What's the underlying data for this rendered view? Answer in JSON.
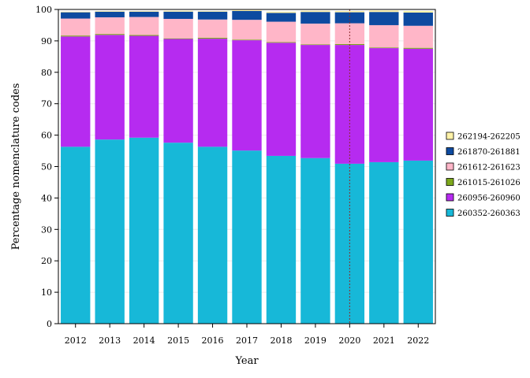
{
  "chart_data": {
    "type": "bar",
    "stacked": true,
    "xlabel": "Year",
    "ylabel": "Percentage nomenclature codes",
    "ylim": [
      0,
      100
    ],
    "yticks": [
      0,
      10,
      20,
      30,
      40,
      50,
      60,
      70,
      80,
      90,
      100
    ],
    "categories": [
      "2012",
      "2013",
      "2014",
      "2015",
      "2016",
      "2017",
      "2018",
      "2019",
      "2020",
      "2021",
      "2022"
    ],
    "reference_line_category": "2020",
    "legend_position": "right",
    "series": [
      {
        "name": "260352-260363",
        "color": "#17b8d8",
        "values": [
          56.3,
          58.6,
          59.2,
          57.6,
          56.3,
          55.1,
          53.4,
          52.7,
          50.9,
          51.4,
          51.9
        ]
      },
      {
        "name": "260956-260960",
        "color": "#b62bf0",
        "values": [
          35.1,
          33.3,
          32.4,
          33.0,
          34.4,
          35.1,
          36.0,
          36.0,
          37.8,
          36.3,
          35.6
        ]
      },
      {
        "name": "261015-261026",
        "color": "#7da81c",
        "values": [
          0.3,
          0.3,
          0.3,
          0.2,
          0.3,
          0.2,
          0.2,
          0.2,
          0.3,
          0.2,
          0.3
        ]
      },
      {
        "name": "261612-261623",
        "color": "#ffb6c8",
        "values": [
          5.4,
          5.3,
          5.7,
          6.2,
          5.8,
          6.3,
          6.5,
          6.6,
          6.6,
          7.1,
          7.0
        ]
      },
      {
        "name": "261870-261881",
        "color": "#0d4aa0",
        "values": [
          2.0,
          1.8,
          1.7,
          2.3,
          2.5,
          2.8,
          2.8,
          3.7,
          3.5,
          4.2,
          4.2
        ]
      },
      {
        "name": "262194-262205",
        "color": "#fff2a8",
        "values": [
          0.2,
          0.2,
          0.2,
          0.3,
          0.2,
          0.3,
          0.4,
          0.4,
          0.4,
          0.5,
          0.5
        ]
      }
    ]
  }
}
